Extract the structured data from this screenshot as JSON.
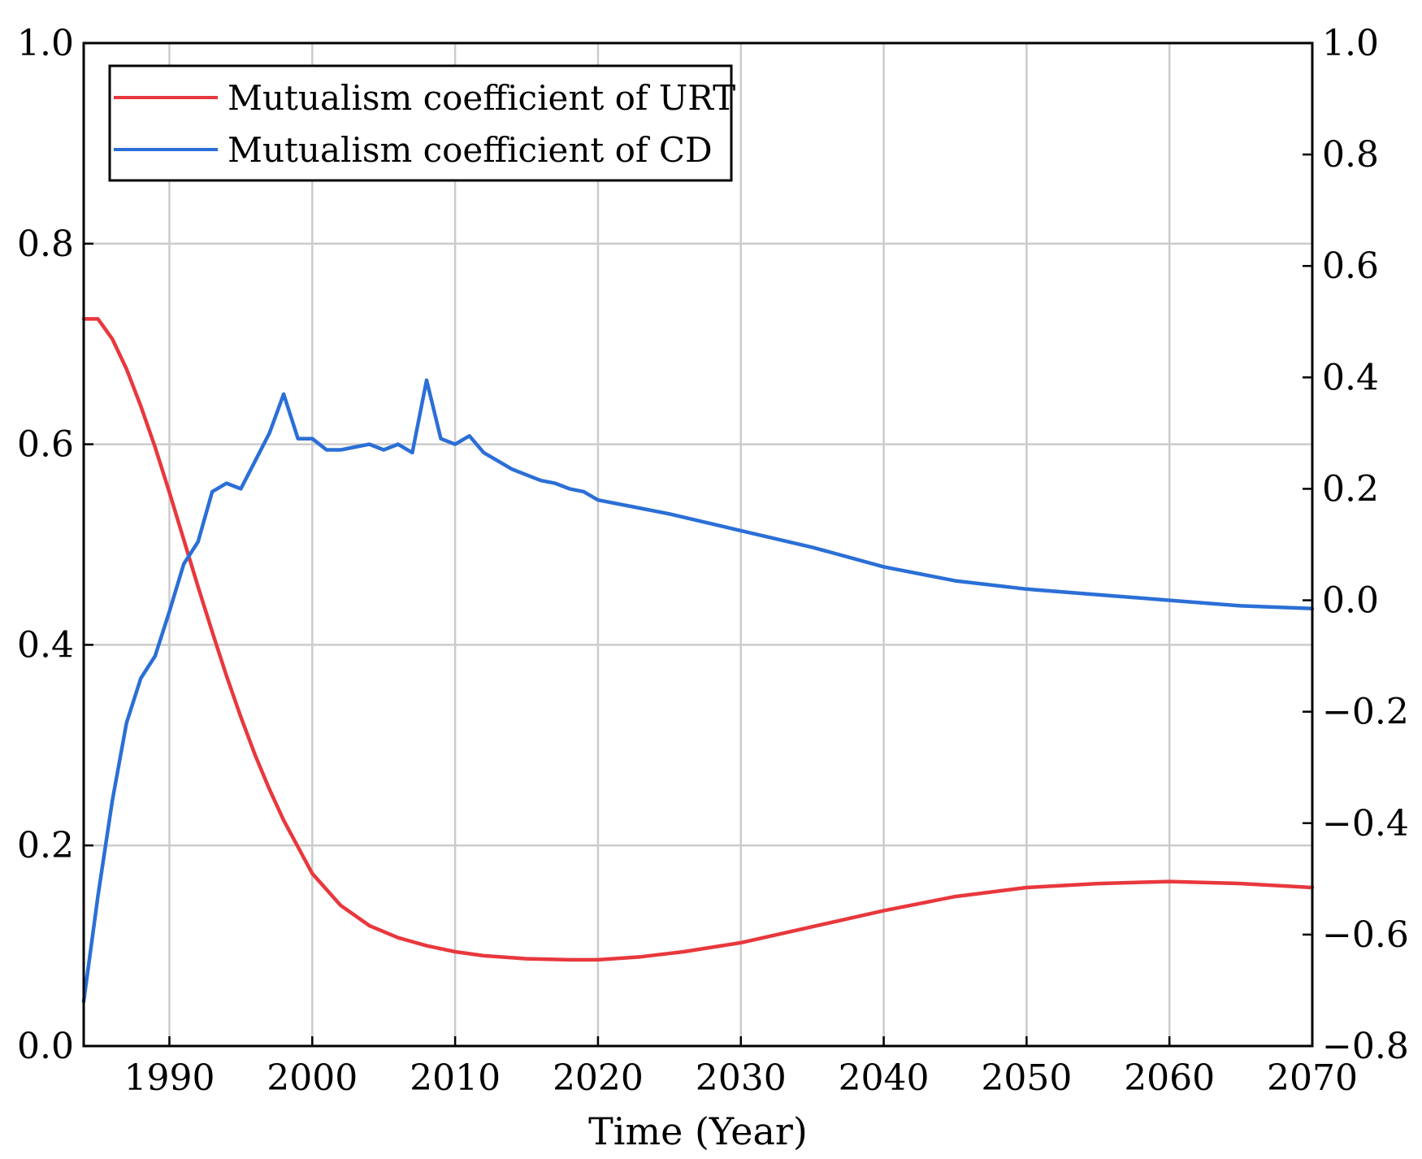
{
  "chart_data": {
    "type": "line",
    "title": "",
    "xlabel": "Time (Year)",
    "ylabel": "",
    "y2label": "",
    "xlim": [
      1984,
      2070
    ],
    "ylim": [
      0.0,
      1.0
    ],
    "y2lim": [
      -0.8,
      1.0
    ],
    "xticks": [
      1990,
      2000,
      2010,
      2020,
      2030,
      2040,
      2050,
      2060,
      2070
    ],
    "xtick_labels": [
      "1990",
      "2000",
      "2010",
      "2020",
      "2030",
      "2040",
      "2050",
      "2060",
      "2070"
    ],
    "yticks": [
      0.0,
      0.2,
      0.4,
      0.6,
      0.8,
      1.0
    ],
    "ytick_labels": [
      "0.0",
      "0.2",
      "0.4",
      "0.6",
      "0.8",
      "1.0"
    ],
    "y2ticks": [
      -0.8,
      -0.6,
      -0.4,
      -0.2,
      0.0,
      0.2,
      0.4,
      0.6,
      0.8,
      1.0
    ],
    "y2tick_labels": [
      "−0.8",
      "−0.6",
      "−0.4",
      "−0.2",
      "0.0",
      "0.2",
      "0.4",
      "0.6",
      "0.8",
      "1.0"
    ],
    "grid": true,
    "legend_position": "top-left",
    "series": [
      {
        "name": "Mutualism coefficient of URT",
        "axis": "left",
        "color": "#e8383d",
        "x": [
          1984,
          1985,
          1986,
          1987,
          1988,
          1989,
          1990,
          1991,
          1992,
          1993,
          1994,
          1995,
          1996,
          1997,
          1998,
          2000,
          2002,
          2004,
          2006,
          2008,
          2010,
          2012,
          2015,
          2018,
          2020,
          2023,
          2026,
          2030,
          2035,
          2040,
          2045,
          2050,
          2055,
          2060,
          2065,
          2070
        ],
        "values": [
          0.725,
          0.725,
          0.705,
          0.675,
          0.638,
          0.597,
          0.552,
          0.505,
          0.458,
          0.413,
          0.369,
          0.328,
          0.29,
          0.256,
          0.225,
          0.172,
          0.14,
          0.12,
          0.108,
          0.1,
          0.094,
          0.09,
          0.087,
          0.086,
          0.086,
          0.089,
          0.094,
          0.103,
          0.119,
          0.135,
          0.149,
          0.158,
          0.162,
          0.164,
          0.162,
          0.158
        ]
      },
      {
        "name": "Mutualism coefficient of CD",
        "axis": "right",
        "color": "#2b6fd6",
        "x": [
          1984,
          1985,
          1986,
          1987,
          1988,
          1989,
          1990,
          1991,
          1992,
          1993,
          1994,
          1995,
          1996,
          1997,
          1998,
          1999,
          2000,
          2001,
          2002,
          2003,
          2004,
          2005,
          2006,
          2007,
          2008,
          2009,
          2010,
          2011,
          2012,
          2013,
          2014,
          2015,
          2016,
          2017,
          2018,
          2019,
          2020,
          2022,
          2025,
          2030,
          2035,
          2040,
          2045,
          2050,
          2055,
          2060,
          2065,
          2070
        ],
        "values": [
          -0.72,
          -0.53,
          -0.36,
          -0.22,
          -0.14,
          -0.1,
          -0.02,
          0.065,
          0.105,
          0.195,
          0.21,
          0.2,
          0.25,
          0.3,
          0.37,
          0.29,
          0.29,
          0.27,
          0.27,
          0.275,
          0.28,
          0.27,
          0.28,
          0.265,
          0.395,
          0.29,
          0.28,
          0.295,
          0.265,
          0.25,
          0.235,
          0.225,
          0.215,
          0.21,
          0.2,
          0.195,
          0.18,
          0.17,
          0.155,
          0.125,
          0.095,
          0.06,
          0.035,
          0.02,
          0.01,
          0.0,
          -0.01,
          -0.015
        ]
      }
    ]
  }
}
